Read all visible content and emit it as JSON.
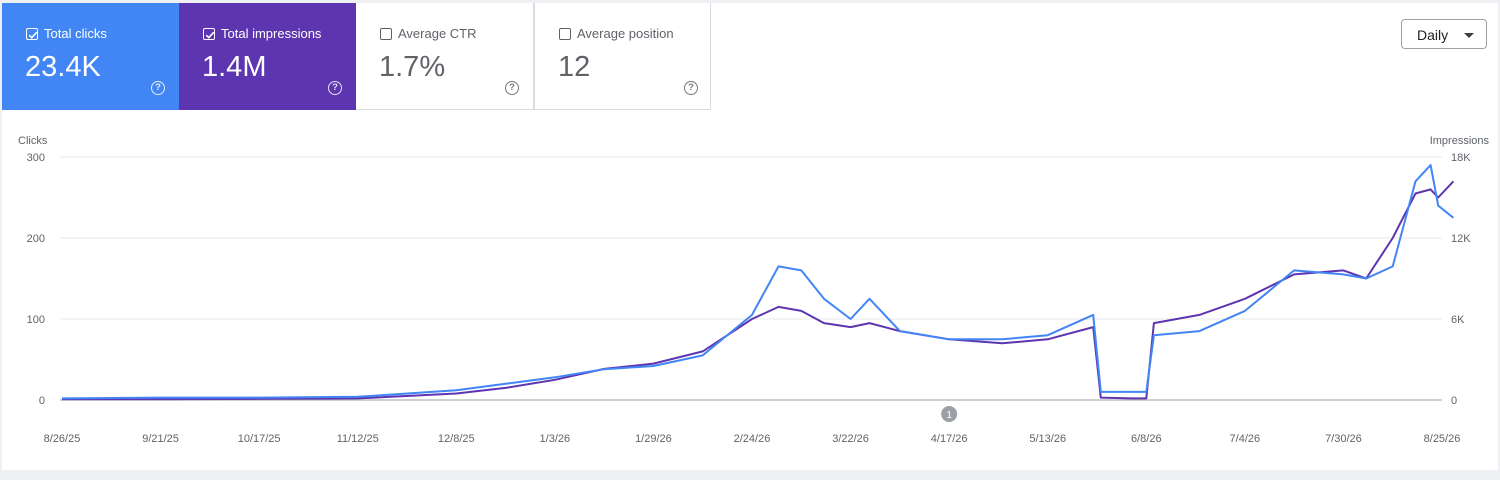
{
  "metrics": [
    {
      "label": "Total clicks",
      "value": "23.4K",
      "checked": true,
      "color": "#4285f4"
    },
    {
      "label": "Total impressions",
      "value": "1.4M",
      "checked": true,
      "color": "#5e35b1"
    },
    {
      "label": "Average CTR",
      "value": "1.7%",
      "checked": false
    },
    {
      "label": "Average position",
      "value": "12",
      "checked": false
    }
  ],
  "help_icon": "help-circle-icon",
  "help_glyph": "?",
  "period_dropdown": {
    "label": "Daily"
  },
  "chart_data": {
    "type": "line",
    "y_left_label": "Clicks",
    "y_right_label": "Impressions",
    "y_left_ticks": [
      "0",
      "100",
      "200",
      "300"
    ],
    "y_right_ticks": [
      "0",
      "6K",
      "12K",
      "18K"
    ],
    "y_left_range": [
      0,
      300
    ],
    "y_right_range": [
      0,
      18000
    ],
    "x_ticks": [
      "8/26/25",
      "9/21/25",
      "10/17/25",
      "11/12/25",
      "12/8/25",
      "1/3/26",
      "1/29/26",
      "2/24/26",
      "3/22/26",
      "4/17/26",
      "5/13/26",
      "6/8/26",
      "7/4/26",
      "7/30/26",
      "8/25/26"
    ],
    "annotation": "1",
    "annotation_date": "4/17/26",
    "grid": true,
    "series": [
      {
        "name": "Total clicks",
        "axis": "left",
        "color": "#4285f4",
        "points": [
          [
            "8/26/25",
            2
          ],
          [
            "9/21/25",
            3
          ],
          [
            "10/17/25",
            3
          ],
          [
            "11/12/25",
            4
          ],
          [
            "12/8/25",
            12
          ],
          [
            "12/21/25",
            20
          ],
          [
            "1/3/26",
            28
          ],
          [
            "1/16/26",
            38
          ],
          [
            "1/29/26",
            42
          ],
          [
            "2/11/26",
            55
          ],
          [
            "2/24/26",
            105
          ],
          [
            "3/3/26",
            165
          ],
          [
            "3/9/26",
            160
          ],
          [
            "3/15/26",
            125
          ],
          [
            "3/22/26",
            100
          ],
          [
            "3/27/26",
            125
          ],
          [
            "4/4/26",
            85
          ],
          [
            "4/17/26",
            75
          ],
          [
            "5/1/26",
            75
          ],
          [
            "5/13/26",
            80
          ],
          [
            "5/25/26",
            105
          ],
          [
            "5/27/26",
            10
          ],
          [
            "6/4/26",
            10
          ],
          [
            "6/8/26",
            10
          ],
          [
            "6/10/26",
            80
          ],
          [
            "6/22/26",
            85
          ],
          [
            "7/4/26",
            110
          ],
          [
            "7/17/26",
            160
          ],
          [
            "7/30/26",
            155
          ],
          [
            "8/5/26",
            150
          ],
          [
            "8/12/26",
            165
          ],
          [
            "8/18/26",
            270
          ],
          [
            "8/22/26",
            290
          ],
          [
            "8/24/26",
            240
          ],
          [
            "8/28/26",
            225
          ]
        ]
      },
      {
        "name": "Total impressions",
        "axis": "right",
        "color": "#5e35b1",
        "points": [
          [
            "8/26/25",
            60
          ],
          [
            "9/21/25",
            60
          ],
          [
            "10/17/25",
            90
          ],
          [
            "11/12/25",
            120
          ],
          [
            "12/8/25",
            480
          ],
          [
            "12/21/25",
            900
          ],
          [
            "1/3/26",
            1500
          ],
          [
            "1/16/26",
            2300
          ],
          [
            "1/29/26",
            2700
          ],
          [
            "2/11/26",
            3600
          ],
          [
            "2/24/26",
            6000
          ],
          [
            "3/3/26",
            6900
          ],
          [
            "3/9/26",
            6600
          ],
          [
            "3/15/26",
            5700
          ],
          [
            "3/22/26",
            5400
          ],
          [
            "3/27/26",
            5700
          ],
          [
            "4/4/26",
            5100
          ],
          [
            "4/17/26",
            4500
          ],
          [
            "5/1/26",
            4200
          ],
          [
            "5/13/26",
            4500
          ],
          [
            "5/25/26",
            5400
          ],
          [
            "5/27/26",
            180
          ],
          [
            "6/4/26",
            120
          ],
          [
            "6/8/26",
            120
          ],
          [
            "6/10/26",
            5700
          ],
          [
            "6/22/26",
            6300
          ],
          [
            "7/4/26",
            7500
          ],
          [
            "7/17/26",
            9300
          ],
          [
            "7/30/26",
            9600
          ],
          [
            "8/5/26",
            9000
          ],
          [
            "8/12/26",
            12000
          ],
          [
            "8/18/26",
            15300
          ],
          [
            "8/22/26",
            15600
          ],
          [
            "8/24/26",
            15000
          ],
          [
            "8/28/26",
            16200
          ]
        ]
      }
    ]
  }
}
